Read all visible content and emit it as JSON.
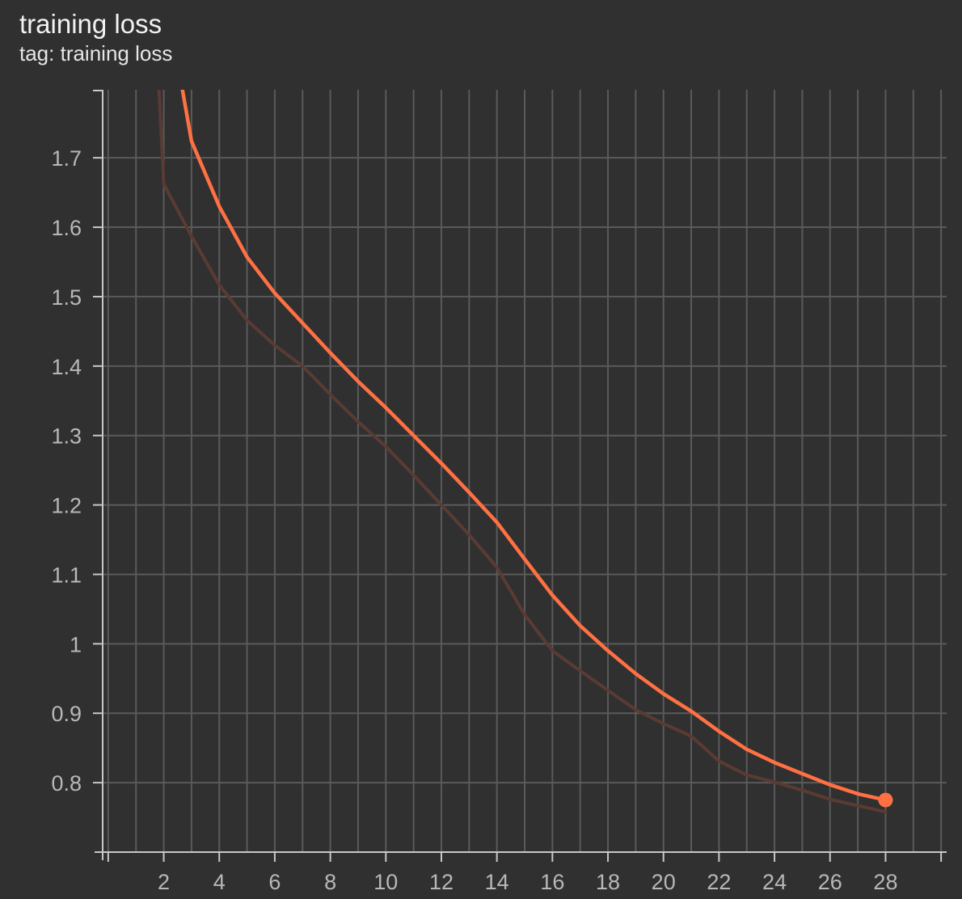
{
  "card": {
    "title": "training loss",
    "subtitle": "tag: training loss"
  },
  "chart_data": {
    "type": "line",
    "title": "training loss",
    "subtitle": "tag: training loss",
    "xlabel": "",
    "ylabel": "",
    "xlim": [
      -0.2,
      30.2
    ],
    "ylim": [
      0.7,
      1.798
    ],
    "grid": true,
    "x_ticks": [
      0,
      2,
      4,
      6,
      8,
      10,
      12,
      14,
      16,
      18,
      20,
      22,
      24,
      26,
      28,
      30
    ],
    "x_tick_labels": [
      "",
      "2",
      "4",
      "6",
      "8",
      "10",
      "12",
      "14",
      "16",
      "18",
      "20",
      "22",
      "24",
      "26",
      "28",
      ""
    ],
    "y_ticks": [
      0.8,
      0.9,
      1.0,
      1.1,
      1.2,
      1.3,
      1.4,
      1.5,
      1.6,
      1.7
    ],
    "y_tick_labels": [
      "0.8",
      "0.9",
      "1",
      "1.1",
      "1.2",
      "1.3",
      "1.4",
      "1.5",
      "1.6",
      "1.7"
    ],
    "series": [
      {
        "role": "raw",
        "color": "#5a3b33",
        "x": [
          1,
          2,
          3,
          4,
          5,
          6,
          7,
          8,
          9,
          10,
          11,
          12,
          13,
          14,
          15,
          16,
          17,
          18,
          19,
          20,
          21,
          22,
          23,
          24,
          25,
          26,
          27,
          28
        ],
        "y": [
          2.45,
          1.662,
          1.587,
          1.517,
          1.466,
          1.43,
          1.4,
          1.359,
          1.32,
          1.284,
          1.243,
          1.2,
          1.157,
          1.11,
          1.042,
          0.99,
          0.961,
          0.933,
          0.905,
          0.885,
          0.867,
          0.831,
          0.811,
          0.801,
          0.789,
          0.776,
          0.767,
          0.758
        ]
      },
      {
        "role": "smoothed",
        "color": "#ff7043",
        "x": [
          2,
          3,
          4,
          5,
          6,
          7,
          8,
          9,
          10,
          11,
          12,
          13,
          14,
          15,
          16,
          17,
          18,
          19,
          20,
          21,
          22,
          23,
          24,
          25,
          26,
          27,
          28
        ],
        "y": [
          1.95,
          1.724,
          1.63,
          1.557,
          1.505,
          1.462,
          1.419,
          1.378,
          1.34,
          1.3,
          1.26,
          1.218,
          1.175,
          1.122,
          1.07,
          1.026,
          0.99,
          0.957,
          0.928,
          0.903,
          0.874,
          0.848,
          0.829,
          0.813,
          0.797,
          0.784,
          0.775
        ]
      }
    ],
    "highlight_point": {
      "x": 28,
      "y": 0.775,
      "color": "#ff7043"
    }
  }
}
